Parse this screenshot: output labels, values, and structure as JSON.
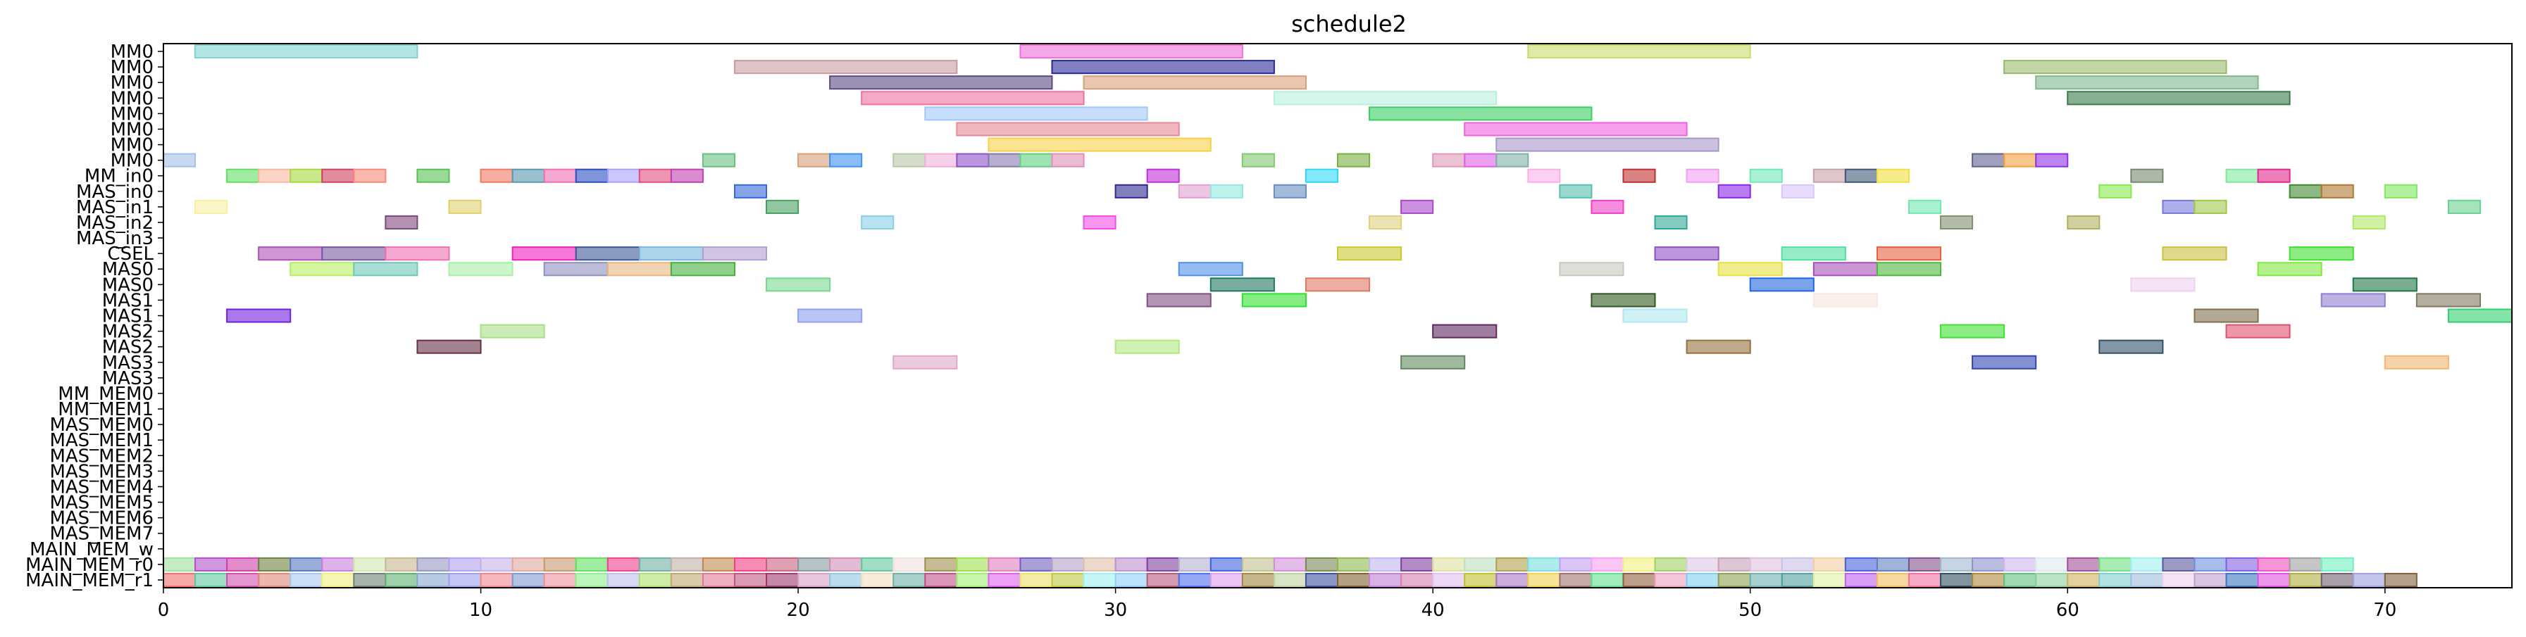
{
  "chart_data": {
    "type": "gantt",
    "title": "schedule2",
    "xlabel": "",
    "ylabel": "",
    "xlim": [
      0,
      74
    ],
    "x_ticks": [
      0,
      10,
      20,
      30,
      40,
      50,
      60,
      70
    ],
    "grid": false,
    "legend": "none",
    "rows": [
      "MM0",
      "MM0",
      "MM0",
      "MM0",
      "MM0",
      "MM0",
      "MM0",
      "MM0",
      "MM_in0",
      "MAS_in0",
      "MAS_in1",
      "MAS_in2",
      "MAS_in3",
      "CSEL",
      "MAS0",
      "MAS0",
      "MAS1",
      "MAS1",
      "MAS2",
      "MAS2",
      "MAS3",
      "MAS3",
      "MM_MEM0",
      "MM_MEM1",
      "MAS_MEM0",
      "MAS_MEM1",
      "MAS_MEM2",
      "MAS_MEM3",
      "MAS_MEM4",
      "MAS_MEM5",
      "MAS_MEM6",
      "MAS_MEM7",
      "MAIN_MEM_w",
      "MAIN_MEM_r0",
      "MAIN_MEM_r1"
    ],
    "bars": [
      {
        "row": 0,
        "start": 1,
        "end": 8,
        "color": "#7fd3d0"
      },
      {
        "row": 0,
        "start": 27,
        "end": 34,
        "color": "#f070d8"
      },
      {
        "row": 0,
        "start": 43,
        "end": 50,
        "color": "#c8dc6a"
      },
      {
        "row": 1,
        "start": 18,
        "end": 25,
        "color": "#c89ca0"
      },
      {
        "row": 1,
        "start": 28,
        "end": 35,
        "color": "#2a2a98"
      },
      {
        "row": 1,
        "start": 58,
        "end": 65,
        "color": "#9cba6c"
      },
      {
        "row": 2,
        "start": 21,
        "end": 28,
        "color": "#5a4a80"
      },
      {
        "row": 2,
        "start": 29,
        "end": 36,
        "color": "#d8a07a"
      },
      {
        "row": 2,
        "start": 59,
        "end": 66,
        "color": "#80b890"
      },
      {
        "row": 3,
        "start": 22,
        "end": 29,
        "color": "#f070a0"
      },
      {
        "row": 3,
        "start": 35,
        "end": 42,
        "color": "#b8f0e0"
      },
      {
        "row": 3,
        "start": 60,
        "end": 67,
        "color": "#3a7a4a"
      },
      {
        "row": 4,
        "start": 24,
        "end": 31,
        "color": "#a0c8f8"
      },
      {
        "row": 4,
        "start": 38,
        "end": 45,
        "color": "#38d060"
      },
      {
        "row": 5,
        "start": 25,
        "end": 32,
        "color": "#e88898"
      },
      {
        "row": 5,
        "start": 41,
        "end": 48,
        "color": "#f060e0"
      },
      {
        "row": 6,
        "start": 26,
        "end": 33,
        "color": "#f8d048"
      },
      {
        "row": 6,
        "start": 42,
        "end": 49,
        "color": "#a898c8"
      },
      {
        "row": 7,
        "start": 0,
        "end": 1,
        "color": "#a0c0e8"
      },
      {
        "row": 7,
        "start": 17,
        "end": 18,
        "color": "#68c080"
      },
      {
        "row": 7,
        "start": 20,
        "end": 21,
        "color": "#d8a078"
      },
      {
        "row": 7,
        "start": 21,
        "end": 22,
        "color": "#4090f0"
      },
      {
        "row": 7,
        "start": 23,
        "end": 24,
        "color": "#b8c8a8"
      },
      {
        "row": 7,
        "start": 24,
        "end": 25,
        "color": "#f0b0d8"
      },
      {
        "row": 7,
        "start": 25,
        "end": 26,
        "color": "#9050c8"
      },
      {
        "row": 7,
        "start": 26,
        "end": 27,
        "color": "#8878b0"
      },
      {
        "row": 7,
        "start": 27,
        "end": 28,
        "color": "#60d080"
      },
      {
        "row": 7,
        "start": 28,
        "end": 29,
        "color": "#e090b8"
      },
      {
        "row": 7,
        "start": 34,
        "end": 35,
        "color": "#80c870"
      },
      {
        "row": 7,
        "start": 37,
        "end": 38,
        "color": "#78b040"
      },
      {
        "row": 7,
        "start": 40,
        "end": 41,
        "color": "#e098b8"
      },
      {
        "row": 7,
        "start": 41,
        "end": 42,
        "color": "#e060e8"
      },
      {
        "row": 7,
        "start": 42,
        "end": 43,
        "color": "#80b0a8"
      },
      {
        "row": 7,
        "start": 57,
        "end": 58,
        "color": "#606090"
      },
      {
        "row": 7,
        "start": 58,
        "end": 59,
        "color": "#f0a040"
      },
      {
        "row": 7,
        "start": 59,
        "end": 60,
        "color": "#9030e8"
      },
      {
        "row": 8,
        "start": 2,
        "end": 3,
        "color": "#60e060"
      },
      {
        "row": 8,
        "start": 3,
        "end": 4,
        "color": "#f8b8a0"
      },
      {
        "row": 8,
        "start": 4,
        "end": 5,
        "color": "#a8d840"
      },
      {
        "row": 8,
        "start": 5,
        "end": 6,
        "color": "#d04060"
      },
      {
        "row": 8,
        "start": 6,
        "end": 7,
        "color": "#f88878"
      },
      {
        "row": 8,
        "start": 8,
        "end": 9,
        "color": "#58c050"
      },
      {
        "row": 8,
        "start": 10,
        "end": 11,
        "color": "#f07860"
      },
      {
        "row": 8,
        "start": 11,
        "end": 12,
        "color": "#5898b0"
      },
      {
        "row": 8,
        "start": 12,
        "end": 13,
        "color": "#f070b0"
      },
      {
        "row": 8,
        "start": 13,
        "end": 14,
        "color": "#2850c0"
      },
      {
        "row": 8,
        "start": 14,
        "end": 15,
        "color": "#a8a0f8"
      },
      {
        "row": 8,
        "start": 15,
        "end": 16,
        "color": "#e05080"
      },
      {
        "row": 8,
        "start": 16,
        "end": 17,
        "color": "#c040b0"
      },
      {
        "row": 8,
        "start": 31,
        "end": 32,
        "color": "#c030d8"
      },
      {
        "row": 8,
        "start": 36,
        "end": 37,
        "color": "#30d8f8"
      },
      {
        "row": 8,
        "start": 43,
        "end": 44,
        "color": "#f8b0e8"
      },
      {
        "row": 8,
        "start": 46,
        "end": 47,
        "color": "#c03030"
      },
      {
        "row": 8,
        "start": 48,
        "end": 49,
        "color": "#f0a0f0"
      },
      {
        "row": 8,
        "start": 50,
        "end": 51,
        "color": "#70e8b8"
      },
      {
        "row": 8,
        "start": 52,
        "end": 53,
        "color": "#c8a0a8"
      },
      {
        "row": 8,
        "start": 53,
        "end": 54,
        "color": "#405878"
      },
      {
        "row": 8,
        "start": 54,
        "end": 55,
        "color": "#f0e040"
      },
      {
        "row": 8,
        "start": 62,
        "end": 63,
        "color": "#788870"
      },
      {
        "row": 8,
        "start": 65,
        "end": 66,
        "color": "#80e8a0"
      },
      {
        "row": 8,
        "start": 66,
        "end": 67,
        "color": "#e02890"
      },
      {
        "row": 9,
        "start": 18,
        "end": 19,
        "color": "#3868d8"
      },
      {
        "row": 9,
        "start": 30,
        "end": 31,
        "color": "#302890"
      },
      {
        "row": 9,
        "start": 32,
        "end": 33,
        "color": "#e0a0d0"
      },
      {
        "row": 9,
        "start": 33,
        "end": 34,
        "color": "#90e8e0"
      },
      {
        "row": 9,
        "start": 35,
        "end": 36,
        "color": "#6890c0"
      },
      {
        "row": 9,
        "start": 44,
        "end": 45,
        "color": "#58c0b0"
      },
      {
        "row": 9,
        "start": 49,
        "end": 50,
        "color": "#8828e8"
      },
      {
        "row": 9,
        "start": 51,
        "end": 52,
        "color": "#d8c8f8"
      },
      {
        "row": 9,
        "start": 61,
        "end": 62,
        "color": "#88e850"
      },
      {
        "row": 9,
        "start": 67,
        "end": 68,
        "color": "#408830"
      },
      {
        "row": 9,
        "start": 68,
        "end": 69,
        "color": "#b07830"
      },
      {
        "row": 9,
        "start": 70,
        "end": 71,
        "color": "#80e860"
      },
      {
        "row": 10,
        "start": 1,
        "end": 2,
        "color": "#f8f0a0"
      },
      {
        "row": 10,
        "start": 9,
        "end": 10,
        "color": "#e0d070"
      },
      {
        "row": 10,
        "start": 19,
        "end": 20,
        "color": "#48a060"
      },
      {
        "row": 10,
        "start": 39,
        "end": 40,
        "color": "#a848c8"
      },
      {
        "row": 10,
        "start": 45,
        "end": 46,
        "color": "#f040c8"
      },
      {
        "row": 10,
        "start": 55,
        "end": 56,
        "color": "#70e8b0"
      },
      {
        "row": 10,
        "start": 63,
        "end": 64,
        "color": "#7878d8"
      },
      {
        "row": 10,
        "start": 64,
        "end": 65,
        "color": "#a0c848"
      },
      {
        "row": 10,
        "start": 72,
        "end": 73,
        "color": "#68d090"
      },
      {
        "row": 11,
        "start": 7,
        "end": 8,
        "color": "#804880"
      },
      {
        "row": 11,
        "start": 22,
        "end": 23,
        "color": "#88d0e8"
      },
      {
        "row": 11,
        "start": 29,
        "end": 30,
        "color": "#f050e8"
      },
      {
        "row": 11,
        "start": 38,
        "end": 39,
        "color": "#e0d080"
      },
      {
        "row": 11,
        "start": 47,
        "end": 48,
        "color": "#30a898"
      },
      {
        "row": 11,
        "start": 56,
        "end": 57,
        "color": "#809070"
      },
      {
        "row": 11,
        "start": 60,
        "end": 61,
        "color": "#b0b060"
      },
      {
        "row": 11,
        "start": 69,
        "end": 70,
        "color": "#b0e868"
      },
      {
        "row": 13,
        "start": 3,
        "end": 5,
        "color": "#b050b8"
      },
      {
        "row": 13,
        "start": 5,
        "end": 7,
        "color": "#7858a0"
      },
      {
        "row": 13,
        "start": 7,
        "end": 9,
        "color": "#f070b0"
      },
      {
        "row": 13,
        "start": 11,
        "end": 13,
        "color": "#f020c0"
      },
      {
        "row": 13,
        "start": 13,
        "end": 15,
        "color": "#405898"
      },
      {
        "row": 13,
        "start": 15,
        "end": 17,
        "color": "#78b8e0"
      },
      {
        "row": 13,
        "start": 17,
        "end": 19,
        "color": "#b0a0d0"
      },
      {
        "row": 13,
        "start": 37,
        "end": 39,
        "color": "#c8c830"
      },
      {
        "row": 13,
        "start": 47,
        "end": 49,
        "color": "#9050c8"
      },
      {
        "row": 13,
        "start": 51,
        "end": 53,
        "color": "#50e0a0"
      },
      {
        "row": 13,
        "start": 54,
        "end": 56,
        "color": "#e86040"
      },
      {
        "row": 13,
        "start": 63,
        "end": 65,
        "color": "#c8c040"
      },
      {
        "row": 13,
        "start": 67,
        "end": 69,
        "color": "#40e030"
      },
      {
        "row": 14,
        "start": 4,
        "end": 6,
        "color": "#b8f060"
      },
      {
        "row": 14,
        "start": 6,
        "end": 8,
        "color": "#70c8b8"
      },
      {
        "row": 14,
        "start": 9,
        "end": 11,
        "color": "#a8f0a8"
      },
      {
        "row": 14,
        "start": 12,
        "end": 14,
        "color": "#9090c0"
      },
      {
        "row": 14,
        "start": 14,
        "end": 16,
        "color": "#e8b880"
      },
      {
        "row": 14,
        "start": 16,
        "end": 18,
        "color": "#48b040"
      },
      {
        "row": 14,
        "start": 32,
        "end": 34,
        "color": "#5090e8"
      },
      {
        "row": 14,
        "start": 44,
        "end": 46,
        "color": "#c8c8c0"
      },
      {
        "row": 14,
        "start": 49,
        "end": 51,
        "color": "#e8e040"
      },
      {
        "row": 14,
        "start": 52,
        "end": 54,
        "color": "#a850b8"
      },
      {
        "row": 14,
        "start": 54,
        "end": 56,
        "color": "#50b840"
      },
      {
        "row": 14,
        "start": 66,
        "end": 68,
        "color": "#80e840"
      },
      {
        "row": 15,
        "start": 19,
        "end": 21,
        "color": "#78d890"
      },
      {
        "row": 15,
        "start": 33,
        "end": 35,
        "color": "#207860"
      },
      {
        "row": 15,
        "start": 36,
        "end": 38,
        "color": "#e07860"
      },
      {
        "row": 15,
        "start": 50,
        "end": 52,
        "color": "#2068e0"
      },
      {
        "row": 15,
        "start": 62,
        "end": 64,
        "color": "#f0d0f0"
      },
      {
        "row": 15,
        "start": 69,
        "end": 71,
        "color": "#207848"
      },
      {
        "row": 16,
        "start": 31,
        "end": 33,
        "color": "#805080"
      },
      {
        "row": 16,
        "start": 34,
        "end": 36,
        "color": "#30e030"
      },
      {
        "row": 16,
        "start": 45,
        "end": 47,
        "color": "#305820"
      },
      {
        "row": 16,
        "start": 52,
        "end": 54,
        "color": "#f8e8e0"
      },
      {
        "row": 16,
        "start": 68,
        "end": 70,
        "color": "#9080d0"
      },
      {
        "row": 16,
        "start": 71,
        "end": 73,
        "color": "#807860"
      },
      {
        "row": 17,
        "start": 2,
        "end": 4,
        "color": "#7020e0"
      },
      {
        "row": 17,
        "start": 20,
        "end": 22,
        "color": "#90a0f0"
      },
      {
        "row": 17,
        "start": 46,
        "end": 48,
        "color": "#b0e8f0"
      },
      {
        "row": 17,
        "start": 64,
        "end": 66,
        "color": "#807050"
      },
      {
        "row": 17,
        "start": 72,
        "end": 74,
        "color": "#30d070"
      },
      {
        "row": 18,
        "start": 10,
        "end": 12,
        "color": "#a8e088"
      },
      {
        "row": 18,
        "start": 40,
        "end": 42,
        "color": "#602860"
      },
      {
        "row": 18,
        "start": 56,
        "end": 58,
        "color": "#40e030"
      },
      {
        "row": 18,
        "start": 65,
        "end": 67,
        "color": "#e05070"
      },
      {
        "row": 19,
        "start": 8,
        "end": 10,
        "color": "#683048"
      },
      {
        "row": 19,
        "start": 30,
        "end": 32,
        "color": "#b0e880"
      },
      {
        "row": 19,
        "start": 48,
        "end": 50,
        "color": "#987040"
      },
      {
        "row": 19,
        "start": 61,
        "end": 63,
        "color": "#305068"
      },
      {
        "row": 20,
        "start": 23,
        "end": 25,
        "color": "#e0a8c8"
      },
      {
        "row": 20,
        "start": 39,
        "end": 41,
        "color": "#608860"
      },
      {
        "row": 20,
        "start": 57,
        "end": 59,
        "color": "#3048b0"
      },
      {
        "row": 20,
        "start": 70,
        "end": 72,
        "color": "#f0b870"
      }
    ],
    "w_colors": [
      "#a0e0a0",
      "#b050c8",
      "#d040a8",
      "#708040",
      "#5878c0",
      "#c880e0",
      "#d0e8b0",
      "#c8b890",
      "#9898c0",
      "#b0a0f0",
      "#c8b0e8",
      "#e0a8a0",
      "#c89870",
      "#60e060",
      "#f0408c",
      "#70b0a0",
      "#c0b0a8",
      "#c08850",
      "#f04080",
      "#c86080",
      "#8898a0",
      "#d090b8",
      "#60c8a0",
      "#f0e0e0",
      "#a09050",
      "#a0e050",
      "#e080c0",
      "#7060c0",
      "#b0a0c8",
      "#e0c0a8",
      "#c090d0",
      "#8040a0",
      "#b8b0d0",
      "#4060e0",
      "#c0c090",
      "#d090d8",
      "#788850",
      "#90b850",
      "#c0b8f0",
      "#8040a0",
      "#e0e0a0",
      "#c0e0c0",
      "#b0a050",
      "#78e0e0",
      "#c0a0f0",
      "#f8a0f0",
      "#f0f080",
      "#a0d068",
      "#e0c8e8",
      "#c8a0b8",
      "#e0c0e0",
      "#c8c0e8",
      "#f0d0a0",
      "#4860d8",
      "#6080c0",
      "#805088",
      "#a0b8d0",
      "#9090d0",
      "#d0b8f0",
      "#e0e8f0",
      "#a05098",
      "#70e080",
      "#a0f0f0",
      "#5858a0",
      "#7090e0",
      "#8060e0",
      "#f050c0",
      "#a0a0a0",
      "#70f0c0"
    ],
    "r0_colors": [
      "#f07070",
      "#60c8a0",
      "#d050b0",
      "#e08878",
      "#a8c8f0",
      "#f0f080",
      "#708078",
      "#60b070",
      "#88a8d0",
      "#a0a0f0",
      "#f08890",
      "#8098d0",
      "#f090a0",
      "#90f090",
      "#c0c0f0",
      "#b0e070",
      "#c0a870",
      "#e07898",
      "#c05880",
      "#a03870",
      "#d8a0c8",
      "#90c8e0",
      "#f0e0c0",
      "#70b0a8",
      "#c05088",
      "#a0f070",
      "#e060f0",
      "#f0e070",
      "#c0c840",
      "#a0f0f0",
      "#90d0f8",
      "#b85880",
      "#5070f0",
      "#e0a0f0",
      "#a08840",
      "#c0d0a0",
      "#4050a0",
      "#806030",
      "#c080d8",
      "#d880b0",
      "#e0c0f0",
      "#c0c030",
      "#a878c0",
      "#f0d050",
      "#a07070",
      "#60e090",
      "#906040",
      "#f0a0c0",
      "#80d0f0",
      "#90a050",
      "#70b0b0",
      "#50a0a0",
      "#e0f0a0",
      "#c060f0",
      "#f0c060",
      "#f070a0",
      "#305060",
      "#b08840",
      "#60c080",
      "#90d0a0",
      "#d0b060",
      "#80d0d0",
      "#a0c0e0",
      "#f0d0f0",
      "#c0a0d0",
      "#3878c0",
      "#e050e0",
      "#b0b040",
      "#706070",
      "#a0a0e0",
      "#806040"
    ],
    "tick_color": "#000000"
  }
}
